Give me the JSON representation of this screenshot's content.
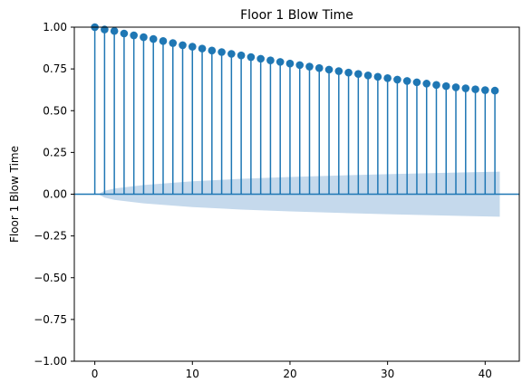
{
  "chart_data": {
    "type": "stem",
    "title": "Floor 1 Blow Time",
    "xlabel": "",
    "ylabel": "Floor 1 Blow Time",
    "xlim": [
      -2.1,
      43.5
    ],
    "ylim": [
      -1.0,
      1.0
    ],
    "x_ticks": [
      0,
      10,
      20,
      30,
      40
    ],
    "y_ticks": [
      -1.0,
      -0.75,
      -0.5,
      -0.25,
      0.0,
      0.25,
      0.5,
      0.75,
      1.0
    ],
    "x_tick_labels": [
      "0",
      "10",
      "20",
      "30",
      "40"
    ],
    "y_tick_labels": [
      "−1.00",
      "−0.75",
      "−0.50",
      "−0.25",
      "0.00",
      "0.25",
      "0.50",
      "0.75",
      "1.00"
    ],
    "lags": [
      0,
      1,
      2,
      3,
      4,
      5,
      6,
      7,
      8,
      9,
      10,
      11,
      12,
      13,
      14,
      15,
      16,
      17,
      18,
      19,
      20,
      21,
      22,
      23,
      24,
      25,
      26,
      27,
      28,
      29,
      30,
      31,
      32,
      33,
      34,
      35,
      36,
      37,
      38,
      39,
      40,
      41
    ],
    "values": [
      1.0,
      0.986,
      0.977,
      0.962,
      0.951,
      0.94,
      0.929,
      0.917,
      0.905,
      0.892,
      0.883,
      0.872,
      0.86,
      0.851,
      0.84,
      0.831,
      0.821,
      0.811,
      0.801,
      0.792,
      0.782,
      0.773,
      0.764,
      0.755,
      0.746,
      0.737,
      0.728,
      0.72,
      0.711,
      0.703,
      0.695,
      0.686,
      0.678,
      0.67,
      0.662,
      0.654,
      0.647,
      0.64,
      0.634,
      0.628,
      0.623,
      0.62
    ],
    "confidence_band": {
      "x": [
        0.5,
        1,
        2,
        5,
        10,
        15,
        20,
        25,
        30,
        35,
        41.5
      ],
      "upper": [
        0.005,
        0.02,
        0.034,
        0.055,
        0.077,
        0.092,
        0.103,
        0.112,
        0.12,
        0.127,
        0.135
      ],
      "lower": [
        -0.005,
        -0.02,
        -0.034,
        -0.055,
        -0.077,
        -0.092,
        -0.103,
        -0.112,
        -0.12,
        -0.127,
        -0.135
      ]
    },
    "grid": false,
    "legend": "none",
    "colors": {
      "stem": "#1f77b4",
      "marker": "#1f77b4",
      "band": "#c5d9ec",
      "zero_line": "#1f77b4",
      "axes": "#000000"
    }
  }
}
